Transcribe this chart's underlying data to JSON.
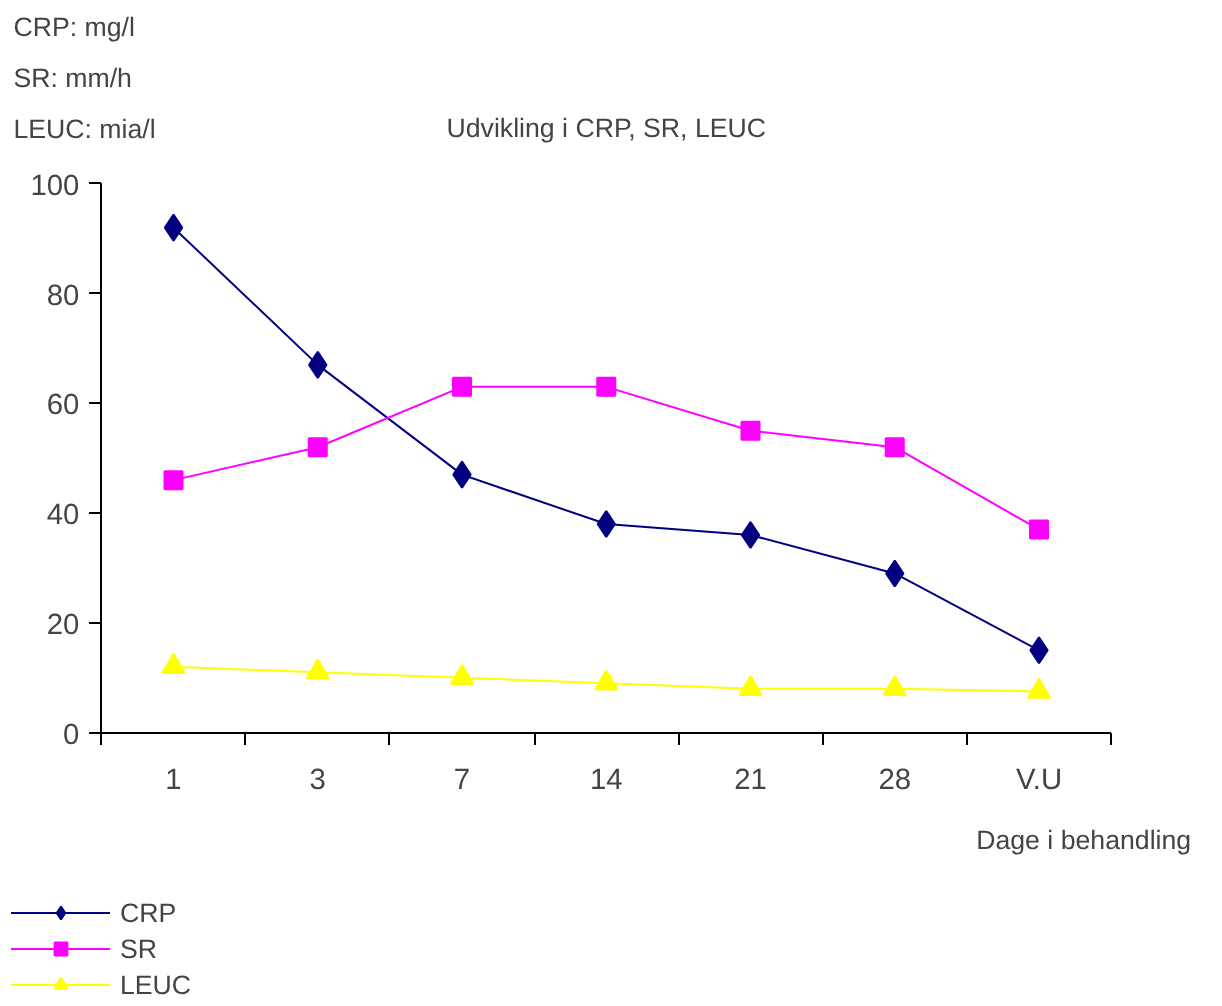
{
  "chart_data": {
    "type": "line",
    "title": "Udvikling i CRP, SR, LEUC",
    "xlabel": "Dage i behandling",
    "annotations": [
      "CRP: mg/l",
      "SR: mm/h",
      "LEUC: mia/l"
    ],
    "categories": [
      "1",
      "3",
      "7",
      "14",
      "21",
      "28",
      "V.U"
    ],
    "series": [
      {
        "name": "CRP",
        "color": "#000080",
        "marker": "diamond",
        "values": [
          92,
          67,
          47,
          38,
          36,
          29,
          15
        ]
      },
      {
        "name": "SR",
        "color": "#ff00ff",
        "marker": "square",
        "values": [
          46,
          52,
          63,
          63,
          55,
          52,
          37
        ]
      },
      {
        "name": "LEUC",
        "color": "#ffff00",
        "marker": "triangle",
        "values": [
          12,
          11,
          10,
          9,
          8,
          8,
          7.5
        ]
      }
    ],
    "ylim": [
      0,
      100
    ],
    "yticks": [
      0,
      20,
      40,
      60,
      80,
      100
    ],
    "grid": false,
    "legend": "bottom left",
    "line_style": "solid"
  }
}
